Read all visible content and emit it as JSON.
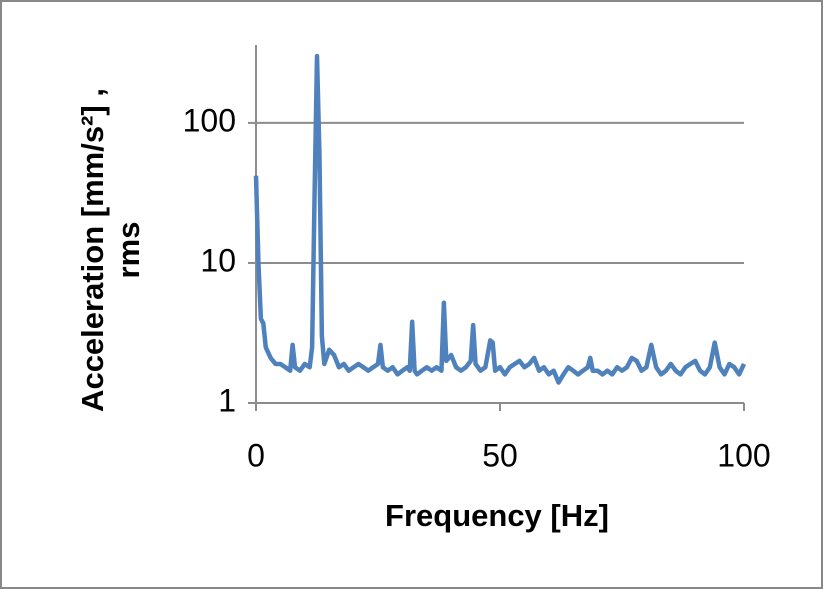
{
  "chart_data": {
    "type": "line",
    "xlabel": "Frequency [Hz]",
    "ylabel": [
      "Acceleration  [mm/s²] ,",
      "rms"
    ],
    "xlim": [
      0,
      100
    ],
    "xticks": [
      0,
      50,
      100
    ],
    "ylim": [
      1,
      360
    ],
    "yticks": [
      1,
      10,
      100
    ],
    "log_y": true,
    "grid": true,
    "series": [
      {
        "color": "#4f81bd",
        "x": [
          0,
          0.5,
          1,
          1.5,
          2,
          3,
          4,
          5,
          6,
          7,
          7.5,
          8,
          9,
          10,
          11,
          11.5,
          12,
          12.5,
          13,
          13.5,
          14,
          15,
          16,
          17,
          18,
          19,
          20,
          21,
          22,
          23,
          24,
          25,
          25.5,
          26,
          27,
          28,
          29,
          30,
          31,
          31.5,
          32,
          32.5,
          33,
          34,
          35,
          36,
          37,
          38,
          38.5,
          39,
          40,
          41,
          42,
          43,
          44,
          44.5,
          45,
          46,
          47,
          48,
          48.5,
          49,
          50,
          51,
          52,
          53,
          54,
          55,
          56,
          57,
          58,
          59,
          60,
          61,
          62,
          63,
          64,
          65,
          66,
          67,
          68,
          68.5,
          69,
          70,
          71,
          72,
          73,
          74,
          75,
          76,
          77,
          78,
          79,
          80,
          81,
          82,
          83,
          84,
          85,
          86,
          87,
          88,
          89,
          90,
          91,
          92,
          93,
          94,
          95,
          96,
          97,
          98,
          99,
          100
        ],
        "values": [
          42,
          10,
          4,
          3.7,
          2.5,
          2.1,
          1.9,
          1.9,
          1.8,
          1.7,
          2.6,
          1.8,
          1.7,
          1.9,
          1.8,
          2.5,
          30,
          300,
          60,
          3,
          1.9,
          2.4,
          2.2,
          1.8,
          1.9,
          1.7,
          1.8,
          1.9,
          1.8,
          1.7,
          1.8,
          1.9,
          2.6,
          1.8,
          1.7,
          1.8,
          1.6,
          1.7,
          1.8,
          1.7,
          3.8,
          1.7,
          1.6,
          1.7,
          1.8,
          1.7,
          1.8,
          1.7,
          5.2,
          2,
          2.2,
          1.8,
          1.7,
          1.8,
          2,
          3.6,
          1.9,
          1.7,
          1.8,
          2.8,
          2.7,
          1.7,
          1.8,
          1.6,
          1.8,
          1.9,
          2,
          1.8,
          1.9,
          2.1,
          1.7,
          1.8,
          1.6,
          1.7,
          1.4,
          1.6,
          1.8,
          1.7,
          1.6,
          1.7,
          1.8,
          2.1,
          1.7,
          1.7,
          1.6,
          1.7,
          1.6,
          1.8,
          1.7,
          1.8,
          2.1,
          2,
          1.7,
          1.8,
          2.6,
          1.8,
          1.6,
          1.7,
          1.9,
          1.7,
          1.6,
          1.8,
          1.9,
          2,
          1.7,
          1.6,
          1.8,
          2.7,
          1.8,
          1.6,
          1.9,
          1.8,
          1.6,
          1.9
        ]
      }
    ]
  }
}
